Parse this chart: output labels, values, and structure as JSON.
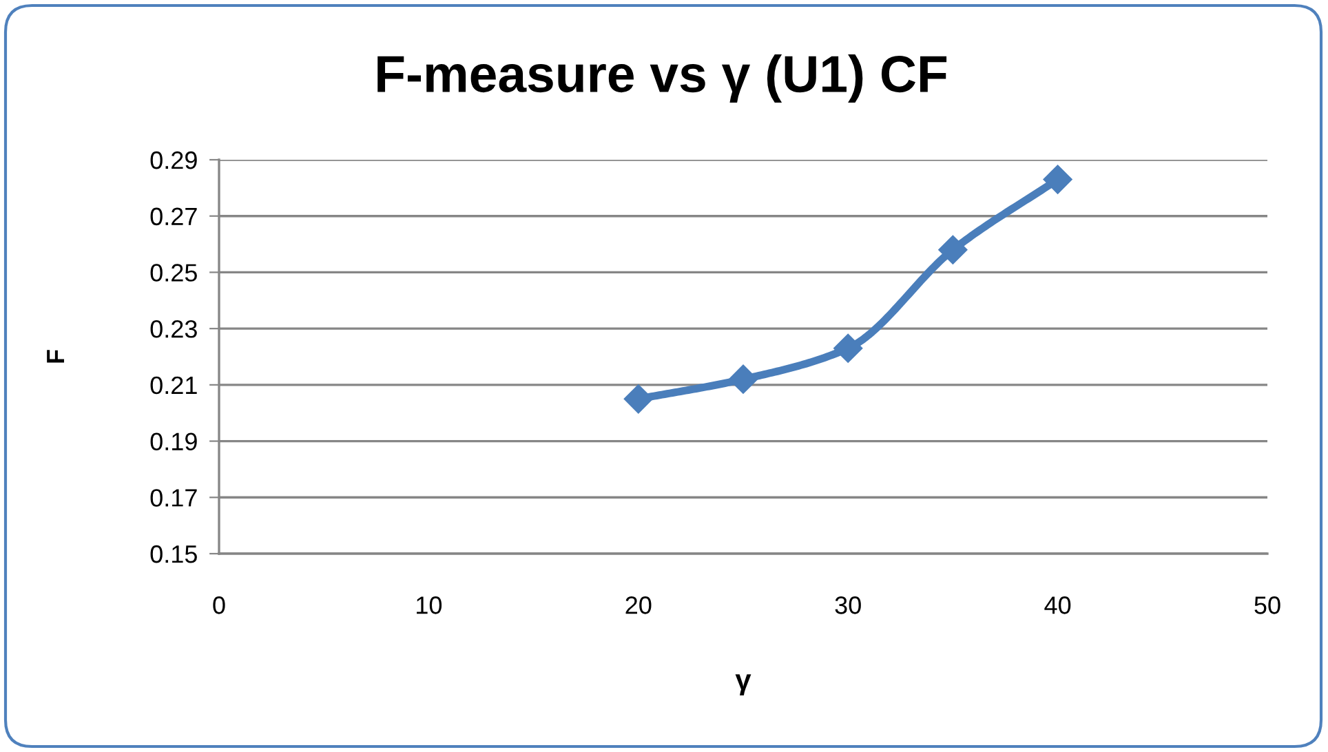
{
  "chart_data": {
    "type": "line",
    "title": "F-measure vs γ (U1) CF",
    "xlabel": "γ",
    "ylabel": "F",
    "x": [
      20,
      25,
      30,
      35,
      40
    ],
    "series": [
      {
        "color": "#4a7ebb",
        "values": [
          0.205,
          0.212,
          0.223,
          0.258,
          0.283
        ]
      }
    ],
    "xlim": [
      0,
      50
    ],
    "xticks": [
      0,
      10,
      20,
      30,
      40,
      50
    ],
    "ylim": [
      0.15,
      0.29
    ],
    "yticks": [
      0.15,
      0.17,
      0.19,
      0.21,
      0.23,
      0.25,
      0.27,
      0.29
    ],
    "grid": "y",
    "marker": "diamond",
    "line_style": "solid",
    "legend": false
  }
}
